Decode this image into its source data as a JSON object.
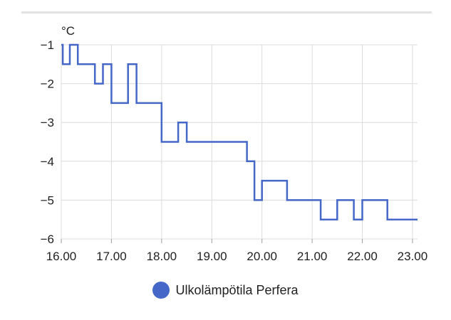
{
  "chart_data": {
    "type": "line",
    "step": true,
    "unit": "°C",
    "series": [
      {
        "name": "Ulkolämpötila Perfera",
        "color": "#4467c8",
        "points": [
          [
            16.0,
            -1.0
          ],
          [
            16.03,
            -1.5
          ],
          [
            16.17,
            -1.0
          ],
          [
            16.33,
            -1.5
          ],
          [
            16.67,
            -2.0
          ],
          [
            16.83,
            -1.5
          ],
          [
            17.0,
            -2.5
          ],
          [
            17.33,
            -1.5
          ],
          [
            17.5,
            -2.5
          ],
          [
            18.0,
            -3.5
          ],
          [
            18.33,
            -3.0
          ],
          [
            18.5,
            -3.5
          ],
          [
            19.7,
            -4.0
          ],
          [
            19.85,
            -5.0
          ],
          [
            20.0,
            -4.5
          ],
          [
            20.5,
            -5.0
          ],
          [
            21.17,
            -5.5
          ],
          [
            21.5,
            -5.0
          ],
          [
            21.83,
            -5.5
          ],
          [
            22.0,
            -5.0
          ],
          [
            22.5,
            -5.5
          ],
          [
            23.1,
            -5.5
          ]
        ]
      }
    ],
    "xlim": [
      16.0,
      23.1
    ],
    "ylim": [
      -6,
      -1
    ],
    "x_ticks": [
      "16.00",
      "17.00",
      "18.00",
      "19.00",
      "20.00",
      "21.00",
      "22.00",
      "23.00"
    ],
    "y_ticks": [
      "-1",
      "-2",
      "-3",
      "-4",
      "-5",
      "-6"
    ],
    "grid": true,
    "legend_position": "bottom"
  }
}
